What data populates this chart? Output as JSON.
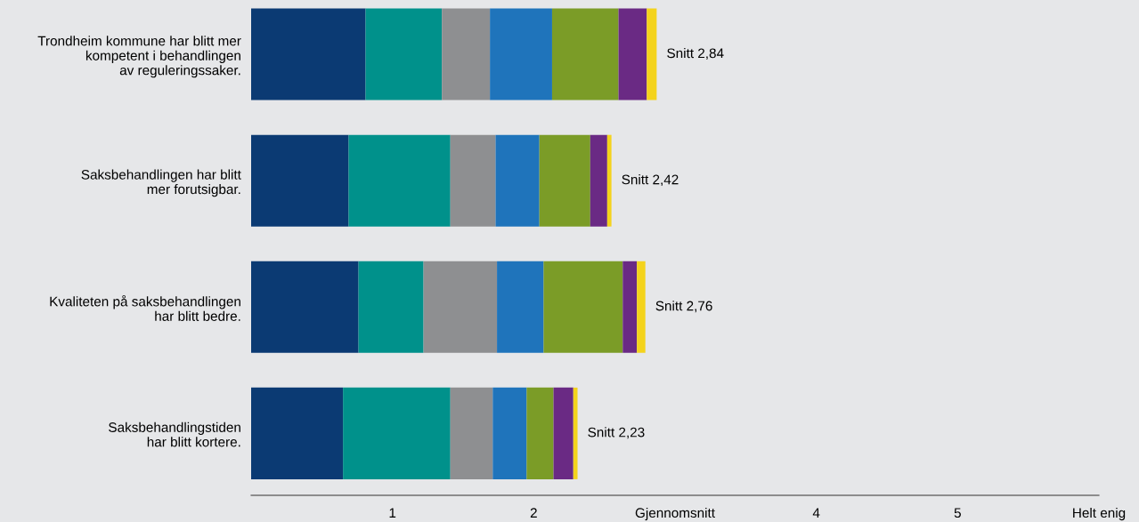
{
  "chart_data": {
    "type": "bar",
    "orientation": "horizontal",
    "stacked": true,
    "categories": [
      "Trondheim kommune har blitt mer\nkompetent i behandlingen\nav reguleringssaker.",
      "Saksbehandlingen har blitt\nmer forutsigbar.",
      "Kvaliteten på saksbehandlingen\nhar blitt bedre.",
      "Saksbehandlingstiden\nhar blitt kortere."
    ],
    "series": [
      {
        "color": "#0b3a73",
        "values": [
          0.81,
          0.69,
          0.76,
          0.65
        ]
      },
      {
        "color": "#00918b",
        "values": [
          0.54,
          0.72,
          0.46,
          0.76
        ]
      },
      {
        "color": "#8e8f91",
        "values": [
          0.34,
          0.32,
          0.52,
          0.3
        ]
      },
      {
        "color": "#1f74bb",
        "values": [
          0.44,
          0.31,
          0.33,
          0.24
        ]
      },
      {
        "color": "#7b9c27",
        "values": [
          0.47,
          0.36,
          0.56,
          0.19
        ]
      },
      {
        "color": "#6a2a84",
        "values": [
          0.2,
          0.12,
          0.1,
          0.14
        ]
      },
      {
        "color": "#f4d31c",
        "values": [
          0.07,
          0.03,
          0.06,
          0.03
        ]
      }
    ],
    "xlim": [
      0,
      6
    ],
    "xticks": [
      1,
      2,
      {
        "value": 3,
        "label": "Gjennomsnitt"
      },
      4,
      5,
      {
        "value": 6,
        "label": "Helt enig"
      }
    ],
    "annotations": [
      {
        "text": "Snitt 2,84",
        "x": 2.87,
        "y": "Trondheim kommune har blitt mer\nkompetent i behandlingen\nav reguleringssaker."
      },
      {
        "text": "Snitt 2,42",
        "x": 2.55,
        "y": "Saksbehandlingen har blitt\nmer forutsigbar."
      },
      {
        "text": "Snitt 2,76",
        "x": 2.79,
        "y": "Kvaliteten på saksbehandlingen\nhar blitt bedre."
      },
      {
        "text": "Snitt 2,23",
        "x": 2.31,
        "y": "Saksbehandlingstiden\nhar blitt kortere."
      }
    ],
    "grid": false
  }
}
